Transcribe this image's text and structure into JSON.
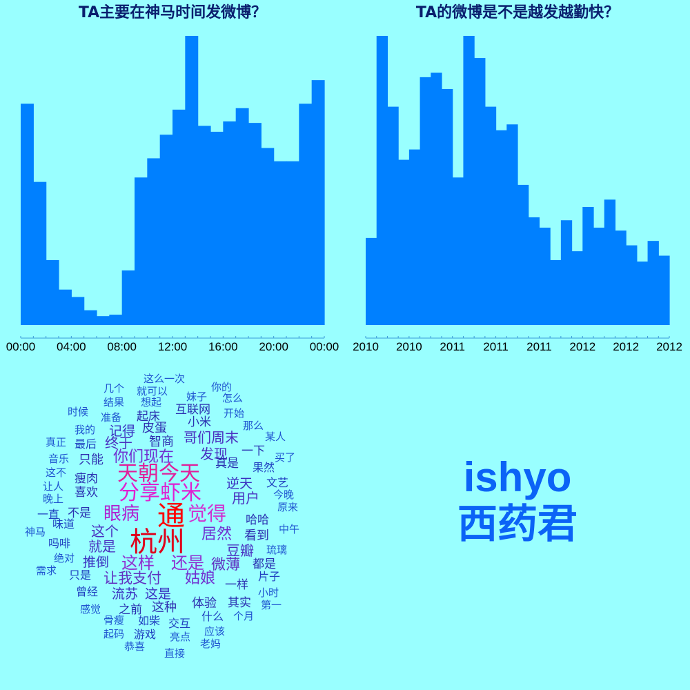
{
  "chart_data": [
    {
      "type": "bar",
      "title": "TA主要在神马时间发微博？",
      "categories": [
        "00:00",
        "01:00",
        "02:00",
        "03:00",
        "04:00",
        "05:00",
        "06:00",
        "07:00",
        "08:00",
        "09:00",
        "10:00",
        "11:00",
        "12:00",
        "13:00",
        "14:00",
        "15:00",
        "16:00",
        "17:00",
        "18:00",
        "19:00",
        "20:00",
        "21:00",
        "22:00",
        "23:00"
      ],
      "values": [
        75,
        48.5,
        22,
        12,
        9.5,
        5,
        3,
        3.5,
        18.5,
        50,
        56.5,
        64.5,
        73,
        98,
        67.5,
        65.5,
        69,
        73.5,
        68.5,
        60,
        55.5,
        55.5,
        75,
        83
      ],
      "tick_labels": [
        "00:00",
        "04:00",
        "08:00",
        "12:00",
        "16:00",
        "20:00",
        "00:00"
      ],
      "color": "#0080FF",
      "ylim": [
        0,
        98
      ]
    },
    {
      "type": "bar",
      "title": "TA的微博是不是越发越勤快？",
      "values": [
        29.5,
        98,
        74,
        56,
        59.5,
        84,
        85.5,
        80,
        50,
        98,
        90.5,
        74,
        66,
        68,
        47.5,
        36.5,
        33,
        22,
        35.5,
        25,
        40,
        33,
        42.5,
        32,
        27,
        21.5,
        28.5,
        23.5
      ],
      "tick_labels": [
        "2010",
        "2010",
        "2011",
        "2011",
        "2011",
        "2012",
        "2012",
        "2012"
      ],
      "color": "#0080FF",
      "ylim": [
        0,
        98
      ]
    }
  ],
  "wordcloud": [
    {
      "text": "通",
      "size": 40,
      "color": "#FF0000"
    },
    {
      "text": "杭州",
      "size": 40,
      "color": "#E0001A"
    },
    {
      "text": "天朝今天",
      "size": 30,
      "color": "#E0209A"
    },
    {
      "text": "分享虾米",
      "size": 30,
      "color": "#E020D0"
    },
    {
      "text": "觉得",
      "size": 28,
      "color": "#D030D0"
    },
    {
      "text": "眼病",
      "size": 26,
      "color": "#B020D0"
    },
    {
      "text": "这样",
      "size": 24,
      "color": "#9030D0"
    },
    {
      "text": "还是",
      "size": 24,
      "color": "#9030D0"
    },
    {
      "text": "居然",
      "size": 22,
      "color": "#7030D0"
    },
    {
      "text": "姑娘",
      "size": 22,
      "color": "#7030D0"
    },
    {
      "text": "你们现在",
      "size": 22,
      "color": "#7030D0"
    },
    {
      "text": "微薄",
      "size": 21,
      "color": "#6030C0"
    },
    {
      "text": "让我支付",
      "size": 21,
      "color": "#6030C0"
    },
    {
      "text": "哥们周末",
      "size": 20,
      "color": "#4A30C0"
    },
    {
      "text": "发现",
      "size": 20,
      "color": "#4A30C0"
    },
    {
      "text": "用户",
      "size": 20,
      "color": "#4A30C0"
    },
    {
      "text": "终于",
      "size": 20,
      "color": "#4A30C0"
    },
    {
      "text": "这个",
      "size": 20,
      "color": "#4A30C0"
    },
    {
      "text": "就是",
      "size": 20,
      "color": "#4A30C0"
    },
    {
      "text": "豆瓣",
      "size": 20,
      "color": "#4A30C0"
    },
    {
      "text": "流苏",
      "size": 19,
      "color": "#3A30C0"
    },
    {
      "text": "这是",
      "size": 19,
      "color": "#3A30C0"
    },
    {
      "text": "逆天",
      "size": 19,
      "color": "#3A30C0"
    },
    {
      "text": "记得",
      "size": 19,
      "color": "#3A30C0"
    },
    {
      "text": "推倒",
      "size": 19,
      "color": "#3A30C0"
    },
    {
      "text": "看到",
      "size": 18,
      "color": "#3030B0"
    },
    {
      "text": "智商",
      "size": 18,
      "color": "#3030B0"
    },
    {
      "text": "皮蛋",
      "size": 18,
      "color": "#3030B0"
    },
    {
      "text": "这种",
      "size": 18,
      "color": "#3030B0"
    },
    {
      "text": "体验",
      "size": 18,
      "color": "#3030B0"
    },
    {
      "text": "只能",
      "size": 18,
      "color": "#3030B0"
    },
    {
      "text": "喜欢",
      "size": 17,
      "color": "#2A30B0"
    },
    {
      "text": "瘦肉",
      "size": 17,
      "color": "#2A30B0"
    },
    {
      "text": "不是",
      "size": 17,
      "color": "#2A30B0"
    },
    {
      "text": "真是",
      "size": 17,
      "color": "#2A30B0"
    },
    {
      "text": "一样",
      "size": 17,
      "color": "#2A30B0"
    },
    {
      "text": "互联网",
      "size": 17,
      "color": "#2A30B0"
    },
    {
      "text": "一下",
      "size": 17,
      "color": "#2A30B0"
    },
    {
      "text": "起床",
      "size": 17,
      "color": "#2A30B0"
    },
    {
      "text": "小米",
      "size": 17,
      "color": "#2A30B0"
    },
    {
      "text": "哈哈",
      "size": 17,
      "color": "#2A30B0"
    },
    {
      "text": "之前",
      "size": 17,
      "color": "#2A30B0"
    },
    {
      "text": "其实",
      "size": 17,
      "color": "#2A30B0"
    },
    {
      "text": "都是",
      "size": 17,
      "color": "#2A30B0"
    },
    {
      "text": "文艺",
      "size": 16,
      "color": "#2040C0"
    },
    {
      "text": "吗啡",
      "size": 16,
      "color": "#2040C0"
    },
    {
      "text": "味道",
      "size": 16,
      "color": "#2040C0"
    },
    {
      "text": "只是",
      "size": 16,
      "color": "#2040C0"
    },
    {
      "text": "最后",
      "size": 16,
      "color": "#2040C0"
    },
    {
      "text": "曾经",
      "size": 16,
      "color": "#2040C0"
    },
    {
      "text": "什么",
      "size": 16,
      "color": "#2040C0"
    },
    {
      "text": "果然",
      "size": 16,
      "color": "#2040C0"
    },
    {
      "text": "如柴",
      "size": 16,
      "color": "#2040C0"
    },
    {
      "text": "游戏",
      "size": 16,
      "color": "#2040C0"
    },
    {
      "text": "交互",
      "size": 16,
      "color": "#2040C0"
    },
    {
      "text": "片子",
      "size": 16,
      "color": "#2040C0"
    },
    {
      "text": "一直",
      "size": 16,
      "color": "#2040C0"
    },
    {
      "text": "那么",
      "size": 15,
      "color": "#1F55D0"
    },
    {
      "text": "开始",
      "size": 15,
      "color": "#1F55D0"
    },
    {
      "text": "妹子",
      "size": 15,
      "color": "#1F55D0"
    },
    {
      "text": "想起",
      "size": 15,
      "color": "#1F55D0"
    },
    {
      "text": "准备",
      "size": 15,
      "color": "#1F55D0"
    },
    {
      "text": "我的",
      "size": 15,
      "color": "#1F55D0"
    },
    {
      "text": "真正",
      "size": 15,
      "color": "#1F55D0"
    },
    {
      "text": "音乐",
      "size": 15,
      "color": "#1F55D0"
    },
    {
      "text": "这不",
      "size": 15,
      "color": "#1F55D0"
    },
    {
      "text": "让人",
      "size": 15,
      "color": "#1F55D0"
    },
    {
      "text": "晚上",
      "size": 15,
      "color": "#1F55D0"
    },
    {
      "text": "绝对",
      "size": 15,
      "color": "#1F55D0"
    },
    {
      "text": "需求",
      "size": 15,
      "color": "#1F55D0"
    },
    {
      "text": "感觉",
      "size": 15,
      "color": "#1F55D0"
    },
    {
      "text": "骨瘦",
      "size": 15,
      "color": "#1F55D0"
    },
    {
      "text": "起码",
      "size": 15,
      "color": "#1F55D0"
    },
    {
      "text": "恭喜",
      "size": 15,
      "color": "#1F55D0"
    },
    {
      "text": "亮点",
      "size": 15,
      "color": "#1F55D0"
    },
    {
      "text": "应该",
      "size": 15,
      "color": "#1F55D0"
    },
    {
      "text": "老妈",
      "size": 15,
      "color": "#1F55D0"
    },
    {
      "text": "直接",
      "size": 15,
      "color": "#1F55D0"
    },
    {
      "text": "个月",
      "size": 15,
      "color": "#1F55D0"
    },
    {
      "text": "第一",
      "size": 15,
      "color": "#1F55D0"
    },
    {
      "text": "小时",
      "size": 15,
      "color": "#1F55D0"
    },
    {
      "text": "琉璃",
      "size": 15,
      "color": "#1F55D0"
    },
    {
      "text": "中午",
      "size": 15,
      "color": "#1F55D0"
    },
    {
      "text": "原来",
      "size": 15,
      "color": "#1F55D0"
    },
    {
      "text": "今晚",
      "size": 15,
      "color": "#1F55D0"
    },
    {
      "text": "买了",
      "size": 15,
      "color": "#1F55D0"
    },
    {
      "text": "某人",
      "size": 15,
      "color": "#1F55D0"
    },
    {
      "text": "怎么",
      "size": 15,
      "color": "#1F55D0"
    },
    {
      "text": "你的",
      "size": 15,
      "color": "#1F55D0"
    },
    {
      "text": "这么一次",
      "size": 15,
      "color": "#1F55D0"
    },
    {
      "text": "几个",
      "size": 15,
      "color": "#1F55D0"
    },
    {
      "text": "就可以",
      "size": 15,
      "color": "#1F55D0"
    },
    {
      "text": "结果",
      "size": 15,
      "color": "#1F55D0"
    },
    {
      "text": "时候",
      "size": 15,
      "color": "#1F55D0"
    },
    {
      "text": "神马",
      "size": 15,
      "color": "#1F55D0"
    }
  ],
  "profile": {
    "username": "ishyo",
    "realname": "西药君",
    "color": "#0B63F6"
  }
}
